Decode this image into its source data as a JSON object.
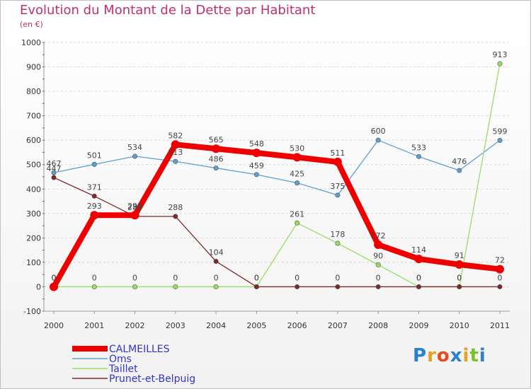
{
  "header": {
    "title": "Evolution du Montant de la Dette par Habitant",
    "subtitle": "(en €)"
  },
  "logo": {
    "text": "Proxiti"
  },
  "colors": {
    "title": "#c0306e",
    "legend_text": "#3333cc",
    "grid": "#d8d8d8"
  },
  "chart_data": {
    "type": "line",
    "x": [
      "2000",
      "2001",
      "2002",
      "2003",
      "2004",
      "2005",
      "2006",
      "2007",
      "2008",
      "2009",
      "2010",
      "2011"
    ],
    "ylim": [
      -100,
      1000
    ],
    "yticks": [
      -100,
      0,
      100,
      200,
      300,
      400,
      500,
      600,
      700,
      800,
      900,
      1000
    ],
    "grid": "horizontal",
    "legend_position": "bottom-left",
    "series": [
      {
        "name": "CALMEILLES",
        "color": "#ee0000",
        "width": "thick",
        "values": [
          0,
          293,
          293,
          582,
          565,
          548,
          530,
          511,
          172,
          114,
          91,
          72
        ],
        "labels": [
          "0",
          "293",
          "293",
          "582",
          "565",
          "548",
          "530",
          "511",
          "172",
          "114",
          "91",
          "72"
        ]
      },
      {
        "name": "Oms",
        "color": "#5f9fd0",
        "width": "thin",
        "values": [
          467,
          501,
          534,
          513,
          486,
          459,
          425,
          375,
          600,
          533,
          476,
          599
        ],
        "labels": [
          "467",
          "501",
          "534",
          "513",
          "486",
          "459",
          "425",
          "375",
          "600",
          "533",
          "476",
          "599"
        ]
      },
      {
        "name": "Taillet",
        "color": "#99dd66",
        "width": "thin",
        "values": [
          0,
          0,
          0,
          0,
          0,
          0,
          261,
          178,
          90,
          0,
          0,
          913
        ],
        "labels": [
          "0",
          "0",
          "0",
          "0",
          "0",
          "0",
          "261",
          "178",
          "90",
          "0",
          "0",
          "913"
        ]
      },
      {
        "name": "Prunet-et-Belpuig",
        "color": "#7a2a2a",
        "width": "thin",
        "values": [
          447,
          371,
          288,
          288,
          104,
          0,
          0,
          0,
          0,
          0,
          0,
          0
        ],
        "labels": [
          "447",
          "371",
          "288",
          "288",
          "104",
          "0",
          "0",
          "0",
          "0",
          "0",
          "0",
          "0"
        ]
      }
    ]
  }
}
